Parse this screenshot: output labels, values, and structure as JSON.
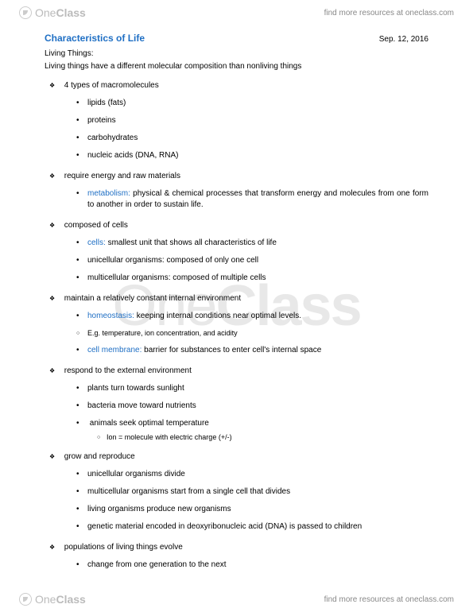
{
  "brand": {
    "part1": "One",
    "part2": "Class"
  },
  "header_link": "find more resources at oneclass.com",
  "footer_link": "find more resources at oneclass.com",
  "title": "Characteristics of Life",
  "date": "Sep. 12, 2016",
  "subtitle": "Living Things:",
  "intro": "Living things have a different molecular composition than nonliving things",
  "sec1": {
    "heading": "4 types of macromolecules",
    "items": [
      "lipids (fats)",
      "proteins",
      "carbohydrates",
      "nucleic acids (DNA, RNA)"
    ]
  },
  "sec2": {
    "heading": "require energy and raw materials",
    "term": "metabolism:",
    "def": " physical & chemical processes that transform energy and molecules from one form to another in order to sustain life."
  },
  "sec3": {
    "heading": "composed of cells",
    "t1": "cells:",
    "d1": " smallest unit that shows all characteristics of life",
    "i2": "unicellular organisms: composed of only one cell",
    "i3": "multicellular organisms: composed of multiple cells"
  },
  "sec4": {
    "heading": "maintain a relatively constant internal environment",
    "t1": "homeostasis:",
    "d1": " keeping internal conditions near optimal levels.",
    "sub": "E.g. temperature, ion concentration, and acidity",
    "t2": "cell membrane:",
    "d2": " barrier for substances to enter cell's internal space"
  },
  "sec5": {
    "heading": "respond to the external environment",
    "i1": "plants turn towards sunlight",
    "i2": "bacteria move toward nutrients",
    "i3": "animals seek optimal temperature",
    "sub": "Ion = molecule with electric charge (+/-)"
  },
  "sec6": {
    "heading": "grow and reproduce",
    "i1": "unicellular organisms divide",
    "i2": "multicellular organisms start from a single cell that divides",
    "i3": "living organisms produce new organisms",
    "i4": "genetic material encoded in deoxyribonucleic acid (DNA) is passed to children"
  },
  "sec7": {
    "heading": "populations of living things evolve",
    "i1": "change from one generation to the next"
  },
  "colors": {
    "link_blue": "#1f6fc4",
    "text": "#000000",
    "watermark": "#e8e8e8",
    "header_gray": "#888888"
  }
}
